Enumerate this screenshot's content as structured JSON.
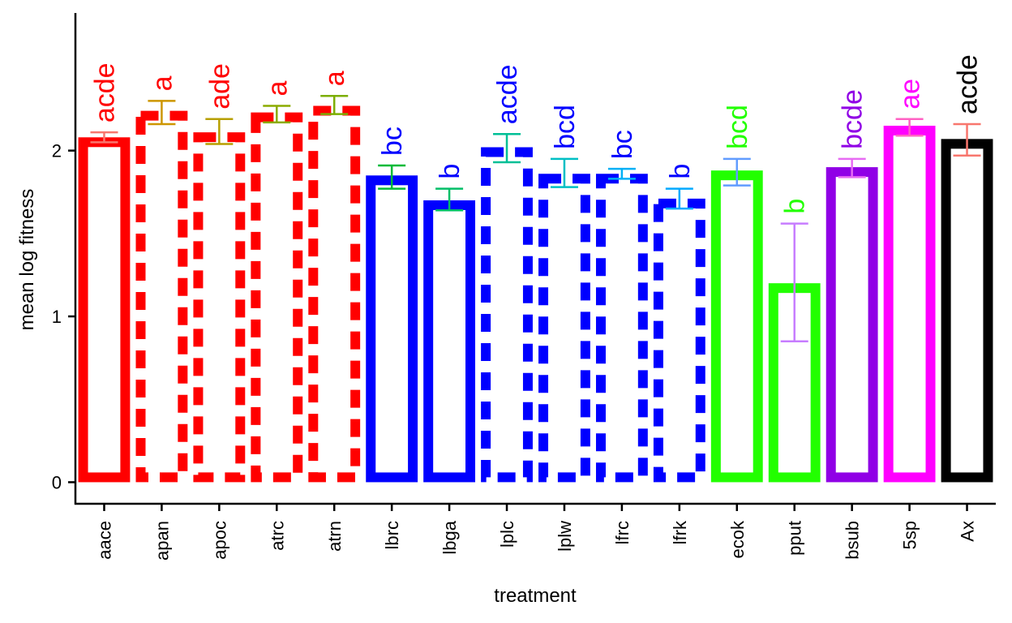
{
  "chart_data": {
    "type": "bar",
    "xlabel": "treatment",
    "ylabel": "mean log fitness",
    "ylim": [
      -0.13,
      2.83
    ],
    "yticks": [
      0,
      1,
      2
    ],
    "grid": false,
    "legend": "none",
    "categories": [
      "aace",
      "apan",
      "apoc",
      "atrc",
      "atrn",
      "lbrc",
      "lbga",
      "lplc",
      "lplw",
      "lfrc",
      "lfrk",
      "ecok",
      "pput",
      "bsub",
      "5sp",
      "Ax"
    ],
    "values": [
      2.08,
      2.24,
      2.11,
      2.23,
      2.27,
      1.85,
      1.7,
      2.02,
      1.86,
      1.86,
      1.71,
      1.88,
      1.2,
      1.9,
      2.15,
      2.07
    ],
    "error_low": [
      2.05,
      2.16,
      2.04,
      2.17,
      2.22,
      1.77,
      1.64,
      1.93,
      1.78,
      1.83,
      1.65,
      1.79,
      0.85,
      1.84,
      2.09,
      1.97
    ],
    "error_high": [
      2.11,
      2.3,
      2.19,
      2.27,
      2.33,
      1.91,
      1.77,
      2.1,
      1.95,
      1.89,
      1.77,
      1.95,
      1.56,
      1.95,
      2.19,
      2.16
    ],
    "letters": [
      "acde",
      "a",
      "ade",
      "a",
      "a",
      "bc",
      "b",
      "acde",
      "bcd",
      "bc",
      "b",
      "bcd",
      "b",
      "bcde",
      "ae",
      "acde"
    ],
    "bar_colors": [
      "#FF0000",
      "#FF0000",
      "#FF0000",
      "#FF0000",
      "#FF0000",
      "#0000FF",
      "#0000FF",
      "#0000FF",
      "#0000FF",
      "#0000FF",
      "#0000FF",
      "#22FF00",
      "#22FF00",
      "#9000E6",
      "#FF00FF",
      "#000000"
    ],
    "bar_linetypes": [
      "solid",
      "dashed",
      "dashed",
      "dashed",
      "dashed",
      "solid",
      "solid",
      "dashed",
      "dashed",
      "dashed",
      "dashed",
      "solid",
      "solid",
      "solid",
      "solid",
      "solid"
    ],
    "label_colors": [
      "#FF0000",
      "#FF0000",
      "#FF0000",
      "#FF0000",
      "#FF0000",
      "#0000FF",
      "#0000FF",
      "#0000FF",
      "#0000FF",
      "#0000FF",
      "#0000FF",
      "#22FF00",
      "#22FF00",
      "#9000E6",
      "#FF00FF",
      "#000000"
    ],
    "errorbar_colors": [
      "#F8766D",
      "#CD9600",
      "#B79F00",
      "#8BAB00",
      "#7CAE00",
      "#00BA38",
      "#00BE67",
      "#00BF96",
      "#00BFC4",
      "#00B0F6",
      "#00A9FF",
      "#619CFF",
      "#C77CFF",
      "#E76BF3",
      "#FF61C3",
      "#F8766D"
    ]
  }
}
